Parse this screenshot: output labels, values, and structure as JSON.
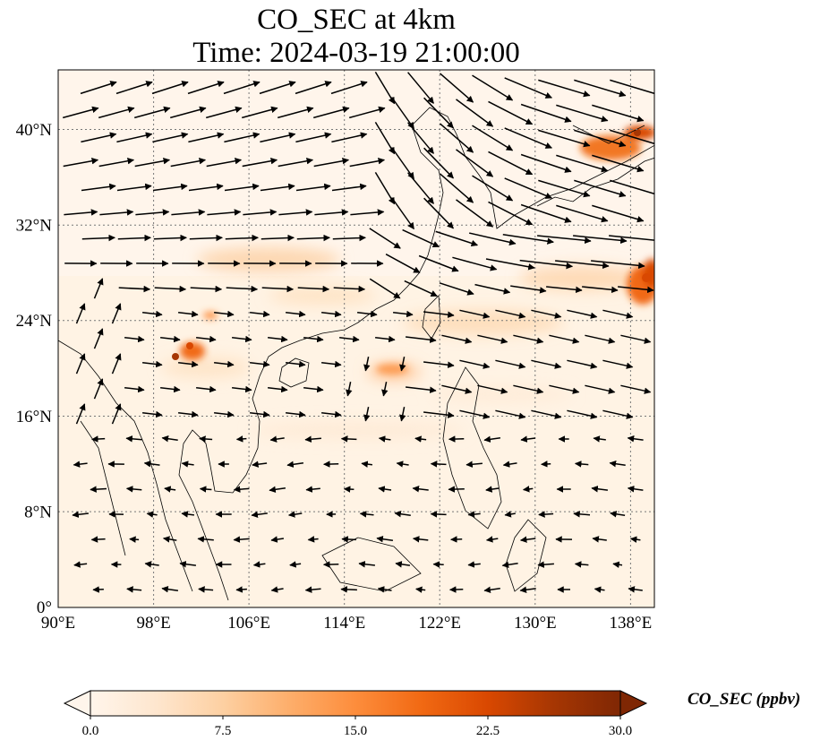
{
  "title": {
    "line1": "CO_SEC at 4km",
    "line2": "Time: 2024-03-19 21:00:00"
  },
  "map": {
    "type": "map",
    "variable": "CO_SEC",
    "level": "4km",
    "lon_range": [
      90,
      140
    ],
    "lat_range": [
      0,
      44
    ],
    "lon_ticks": [
      "90°E",
      "98°E",
      "106°E",
      "114°E",
      "122°E",
      "130°E",
      "138°E"
    ],
    "lat_ticks": [
      "0°",
      "8°N",
      "16°N",
      "24°N",
      "32°N",
      "40°N"
    ],
    "gridlines": "dotted",
    "vectors": "wind arrows",
    "plume_hotspots": [
      {
        "lon": 100.5,
        "lat": 21.0,
        "level": "max"
      },
      {
        "lon": 135.0,
        "lat": 38.5,
        "level": "high"
      },
      {
        "lon": 139.5,
        "lat": 27.5,
        "level": "high"
      },
      {
        "lon": 118.5,
        "lat": 19.5,
        "level": "medium"
      },
      {
        "lon": 110.0,
        "lat": 28.5,
        "level": "low"
      }
    ]
  },
  "colorbar": {
    "label": "CO_SEC (ppbv)",
    "min": 0.0,
    "max": 30.0,
    "ticks": [
      "0.0",
      "7.5",
      "15.0",
      "22.5",
      "30.0"
    ],
    "extend": "both",
    "colormap": [
      "#fff5eb",
      "#fee6ce",
      "#fdd0a2",
      "#fdae6b",
      "#fd8d3c",
      "#f16913",
      "#d94801",
      "#a63603",
      "#7f2704"
    ]
  }
}
